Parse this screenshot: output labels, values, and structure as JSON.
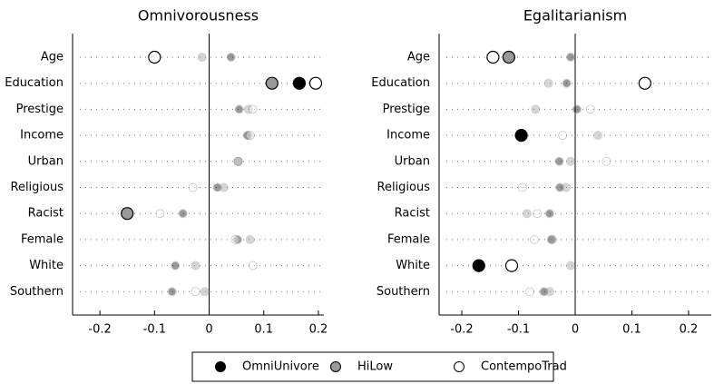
{
  "chart_data": [
    {
      "type": "dot",
      "title": "Omnivorousness",
      "categories": [
        "Age",
        "Education",
        "Prestige",
        "Income",
        "Urban",
        "Religious",
        "Racist",
        "Female",
        "White",
        "Southern"
      ],
      "series": [
        {
          "name": "OmniUnivore",
          "color": "#000000",
          "values": [
            0.04,
            0.165,
            0.055,
            0.07,
            0.053,
            0.015,
            -0.048,
            0.052,
            -0.062,
            -0.068
          ],
          "bold": [
            false,
            true,
            false,
            false,
            false,
            false,
            false,
            false,
            false,
            false
          ]
        },
        {
          "name": "HiLow",
          "color": "#999999",
          "values": [
            -0.013,
            0.115,
            0.072,
            0.072,
            0.053,
            0.027,
            -0.15,
            0.075,
            -0.025,
            -0.008
          ],
          "bold": [
            false,
            true,
            false,
            false,
            false,
            false,
            true,
            false,
            false,
            false
          ]
        },
        {
          "name": "ContempoTrad",
          "color": "#ffffff",
          "values": [
            -0.1,
            0.195,
            0.08,
            0.075,
            0.053,
            -0.03,
            -0.09,
            0.048,
            0.08,
            -0.025
          ],
          "bold": [
            true,
            true,
            false,
            false,
            false,
            false,
            false,
            false,
            false,
            false
          ]
        }
      ],
      "xlim": [
        -0.25,
        0.21
      ],
      "xticks": [
        -0.2,
        -0.1,
        0,
        0.1,
        0.2
      ]
    },
    {
      "type": "dot",
      "title": "Egalitarianism",
      "categories": [
        "Age",
        "Education",
        "Prestige",
        "Income",
        "Urban",
        "Religious",
        "Racist",
        "Female",
        "White",
        "Southern"
      ],
      "series": [
        {
          "color": "#000000",
          "values": [
            -0.008,
            -0.015,
            0.003,
            -0.095,
            -0.028,
            -0.027,
            -0.045,
            -0.042,
            -0.17,
            -0.055
          ],
          "bold": [
            false,
            false,
            false,
            true,
            false,
            false,
            false,
            false,
            true,
            false
          ]
        },
        {
          "color": "#999999",
          "values": [
            -0.117,
            -0.047,
            -0.07,
            0.04,
            -0.008,
            -0.016,
            -0.085,
            -0.04,
            -0.008,
            -0.045
          ],
          "bold": [
            true,
            false,
            false,
            false,
            false,
            false,
            false,
            false,
            false,
            false
          ]
        },
        {
          "color": "#ffffff",
          "values": [
            -0.145,
            0.123,
            0.027,
            -0.022,
            0.055,
            -0.093,
            -0.067,
            -0.072,
            -0.112,
            -0.08
          ],
          "bold": [
            true,
            true,
            false,
            false,
            false,
            false,
            false,
            false,
            true,
            false
          ]
        }
      ],
      "xlim": [
        -0.24,
        0.24
      ],
      "xticks": [
        -0.2,
        -0.1,
        0,
        0.1,
        0.2
      ]
    }
  ]
}
